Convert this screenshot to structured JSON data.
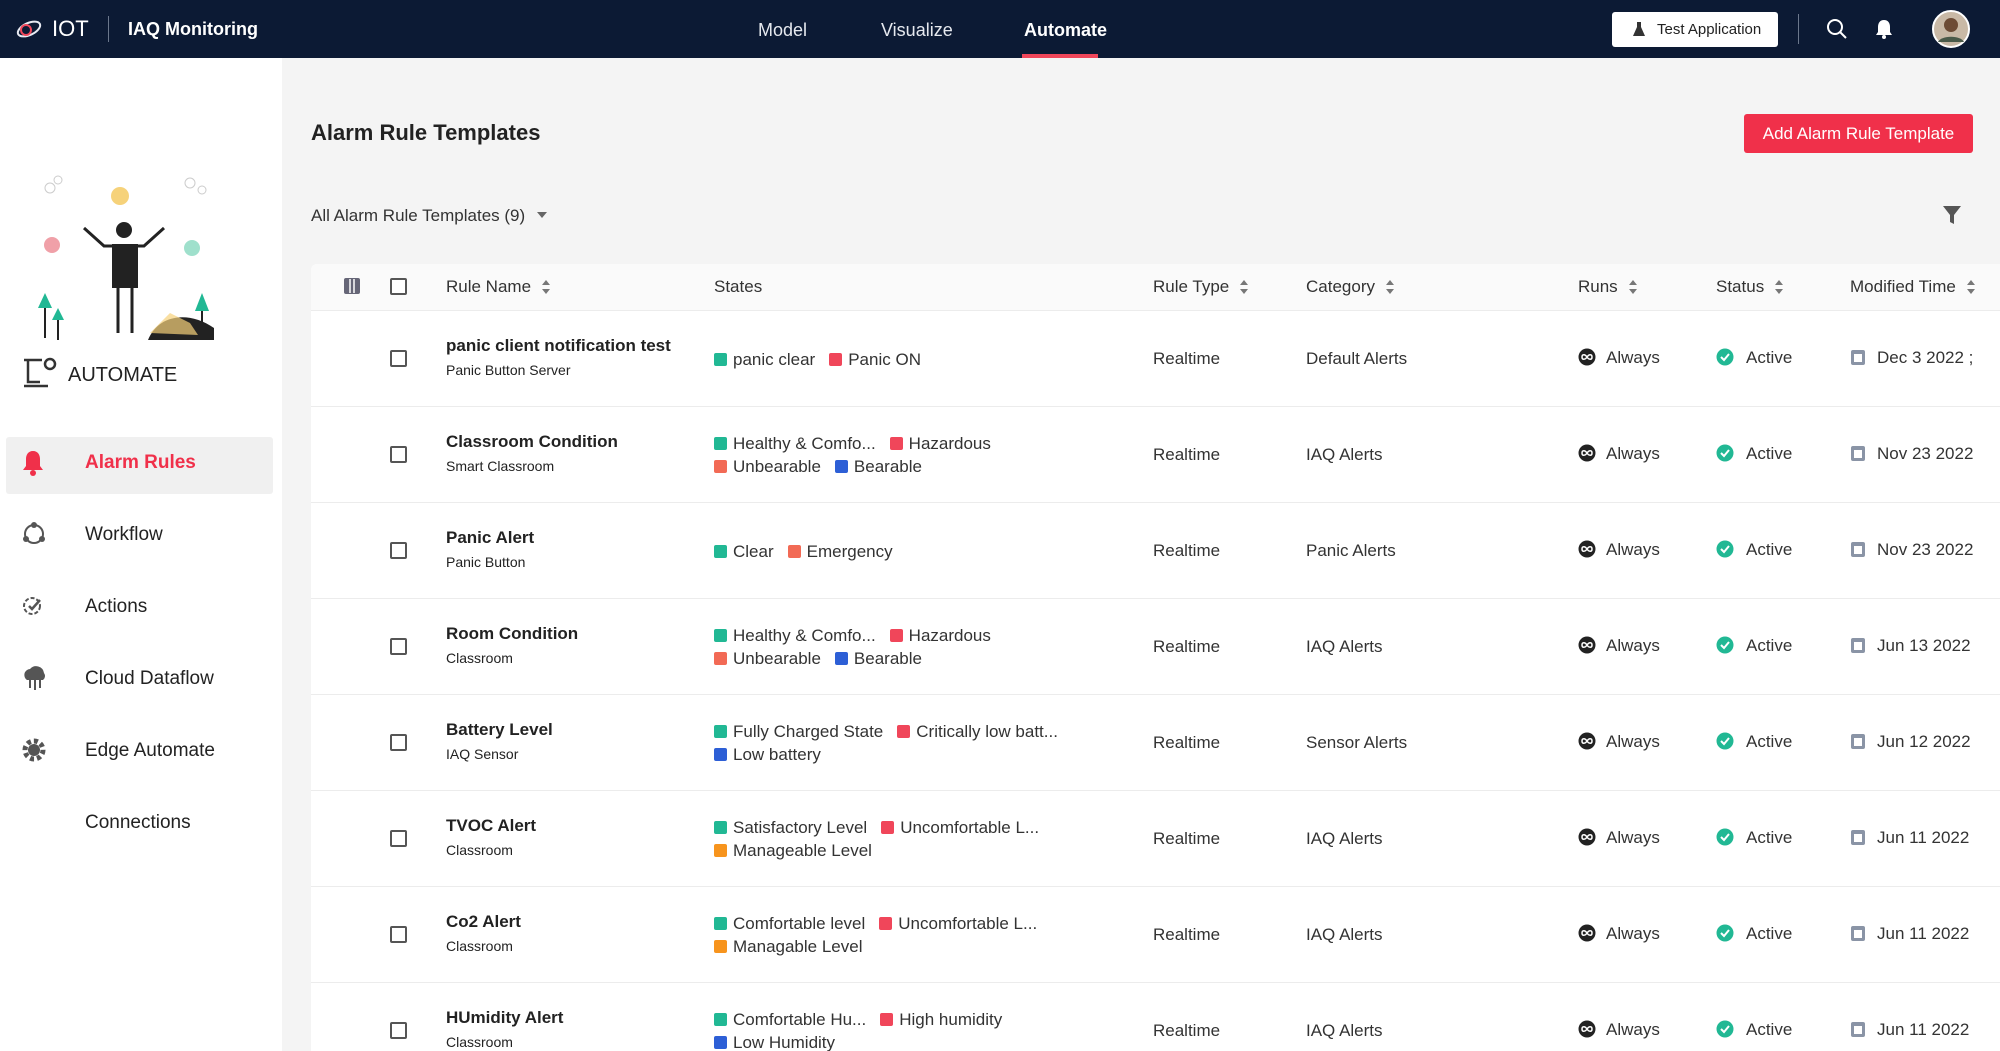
{
  "header": {
    "brand": "IOT",
    "app": "IAQ Monitoring",
    "nav": [
      "Model",
      "Visualize",
      "Automate"
    ],
    "test_button": "Test Application"
  },
  "sidebar": {
    "section": "AUTOMATE",
    "items": [
      "Alarm Rules",
      "Workflow",
      "Actions",
      "Cloud Dataflow",
      "Edge Automate",
      "Connections"
    ]
  },
  "main": {
    "title": "Alarm Rule Templates",
    "add_button": "Add Alarm Rule Template",
    "filter": "All Alarm Rule Templates (9)"
  },
  "table": {
    "columns": [
      "Rule Name",
      "States",
      "Rule Type",
      "Category",
      "Runs",
      "Status",
      "Modified Time"
    ],
    "rows": [
      {
        "name": "panic client notification test",
        "subtitle": "Panic Button Server",
        "states": [
          [
            {
              "label": "panic clear",
              "color": "#21b894"
            },
            {
              "label": "Panic ON",
              "color": "#f0465a"
            }
          ]
        ],
        "type": "Realtime",
        "category": "Default Alerts",
        "runs": "Always",
        "status": "Active",
        "modified": "Dec 3 2022 ;"
      },
      {
        "name": "Classroom Condition",
        "subtitle": "Smart Classroom",
        "states": [
          [
            {
              "label": "Healthy & Comfo...",
              "color": "#21b894"
            },
            {
              "label": "Hazardous",
              "color": "#f0465a"
            }
          ],
          [
            {
              "label": "Unbearable",
              "color": "#f26a55"
            },
            {
              "label": "Bearable",
              "color": "#2d5fd6"
            }
          ]
        ],
        "type": "Realtime",
        "category": "IAQ Alerts",
        "runs": "Always",
        "status": "Active",
        "modified": "Nov 23 2022"
      },
      {
        "name": "Panic Alert",
        "subtitle": "Panic Button",
        "states": [
          [
            {
              "label": "Clear",
              "color": "#21b894"
            },
            {
              "label": "Emergency",
              "color": "#f26a55"
            }
          ]
        ],
        "type": "Realtime",
        "category": "Panic Alerts",
        "runs": "Always",
        "status": "Active",
        "modified": "Nov 23 2022"
      },
      {
        "name": "Room Condition",
        "subtitle": "Classroom",
        "states": [
          [
            {
              "label": "Healthy & Comfo...",
              "color": "#21b894"
            },
            {
              "label": "Hazardous",
              "color": "#f0465a"
            }
          ],
          [
            {
              "label": "Unbearable",
              "color": "#f26a55"
            },
            {
              "label": "Bearable",
              "color": "#2d5fd6"
            }
          ]
        ],
        "type": "Realtime",
        "category": "IAQ Alerts",
        "runs": "Always",
        "status": "Active",
        "modified": "Jun 13 2022"
      },
      {
        "name": "Battery Level",
        "subtitle": "IAQ Sensor",
        "states": [
          [
            {
              "label": "Fully Charged State",
              "color": "#21b894"
            },
            {
              "label": "Critically low batt...",
              "color": "#f0465a"
            }
          ],
          [
            {
              "label": "Low battery",
              "color": "#2d5fd6"
            }
          ]
        ],
        "type": "Realtime",
        "category": "Sensor Alerts",
        "runs": "Always",
        "status": "Active",
        "modified": "Jun 12 2022"
      },
      {
        "name": "TVOC Alert",
        "subtitle": "Classroom",
        "states": [
          [
            {
              "label": "Satisfactory Level",
              "color": "#21b894"
            },
            {
              "label": "Uncomfortable L...",
              "color": "#f0465a"
            }
          ],
          [
            {
              "label": "Manageable Level",
              "color": "#f7941d"
            }
          ]
        ],
        "type": "Realtime",
        "category": "IAQ Alerts",
        "runs": "Always",
        "status": "Active",
        "modified": "Jun 11 2022"
      },
      {
        "name": "Co2 Alert",
        "subtitle": "Classroom",
        "states": [
          [
            {
              "label": "Comfortable level",
              "color": "#21b894"
            },
            {
              "label": "Uncomfortable L...",
              "color": "#f0465a"
            }
          ],
          [
            {
              "label": "Managable Level",
              "color": "#f7941d"
            }
          ]
        ],
        "type": "Realtime",
        "category": "IAQ Alerts",
        "runs": "Always",
        "status": "Active",
        "modified": "Jun 11 2022"
      },
      {
        "name": "HUmidity Alert",
        "subtitle": "Classroom",
        "states": [
          [
            {
              "label": "Comfortable Hu...",
              "color": "#21b894"
            },
            {
              "label": "High humidity",
              "color": "#f0465a"
            }
          ],
          [
            {
              "label": "Low Humidity",
              "color": "#2d5fd6"
            }
          ]
        ],
        "type": "Realtime",
        "category": "IAQ Alerts",
        "runs": "Always",
        "status": "Active",
        "modified": "Jun 11 2022"
      }
    ]
  }
}
